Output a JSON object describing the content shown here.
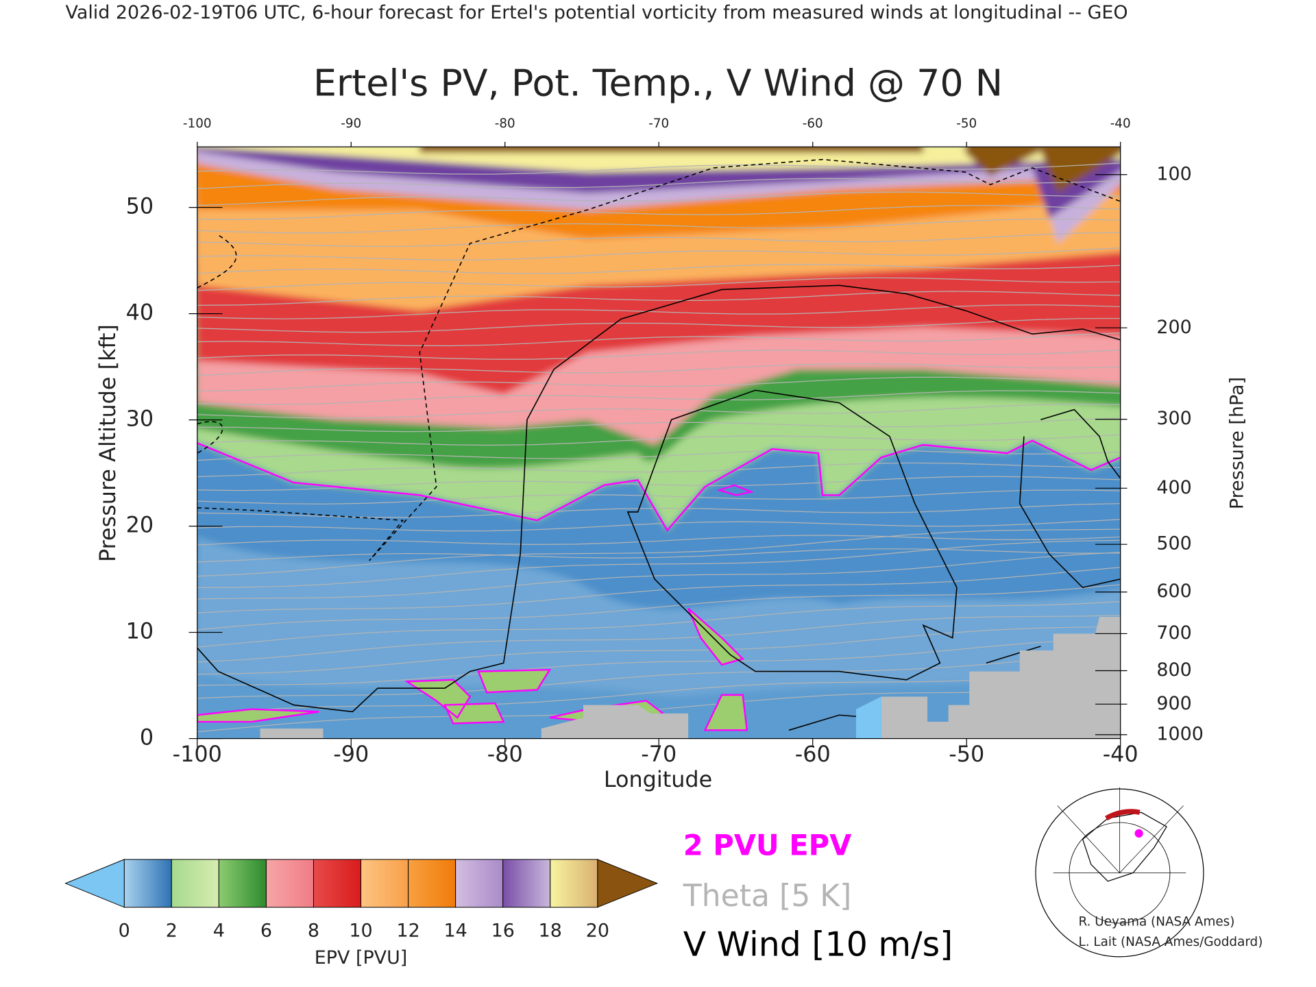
{
  "header": "Valid 2026-02-19T06 UTC, 6-hour forecast for Ertel's potential vorticity from measured winds at longitudinal -- GEO",
  "chart_data": {
    "type": "contour",
    "title": "Ertel's PV, Pot. Temp., V Wind @ 70 N",
    "x_label": "Longitude",
    "y_label": "Pressure Altitude [kft]",
    "y2_label": "Pressure [hPa]",
    "xlim": [
      -100,
      -40
    ],
    "xticks": [
      -100,
      -90,
      -80,
      -70,
      -60,
      -50,
      -40
    ],
    "ylim": [
      0,
      55.7
    ],
    "yticks": [
      0,
      10,
      20,
      30,
      40,
      50
    ],
    "y2scale": "standard-atmosphere",
    "y2lim": [
      1013.25,
      88.2
    ],
    "y2ticks": [
      100,
      200,
      300,
      400,
      500,
      600,
      700,
      800,
      900,
      1000
    ],
    "colorbar": {
      "label": "EPV [PVU]",
      "lim": [
        0,
        20
      ],
      "ticks": [
        0,
        2,
        4,
        6,
        8,
        10,
        12,
        14,
        16,
        18,
        20
      ],
      "colors": [
        [
          "#a9d2ee",
          "#2f72b3"
        ],
        [
          "#a6da8e",
          "#d7ecb0"
        ],
        [
          "#8ccc72",
          "#2e8b2e"
        ],
        [
          "#f6a6a6",
          "#f07c86"
        ],
        [
          "#e84a4a",
          "#d81c1c"
        ],
        [
          "#fcc482",
          "#f9a04a"
        ],
        [
          "#f9a040",
          "#f07b0a"
        ],
        [
          "#d3bde0",
          "#a98bc9"
        ],
        [
          "#7a4fa8",
          "#c9b7dc"
        ],
        [
          "#f8f4a0",
          "#d9b071"
        ]
      ],
      "under_color": "#7cc6f3",
      "over_color": "#8a5410"
    },
    "legend": [
      {
        "name": "2 PVU EPV",
        "color": "#ff00ff"
      },
      {
        "name": "Theta [5 K]",
        "color": "#b4b4b4"
      },
      {
        "name": "V Wind [10 m/s]",
        "color": "#000000"
      }
    ]
  },
  "credits": [
    "R. Ueyama (NASA Ames)",
    "L. Lait (NASA Ames/Goddard)"
  ]
}
